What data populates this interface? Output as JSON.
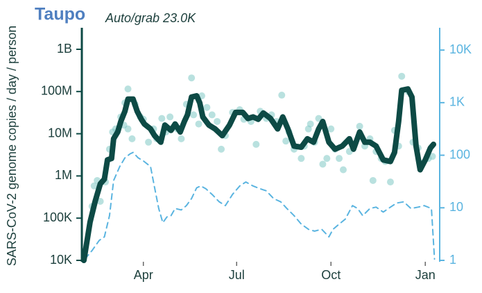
{
  "chart_data": {
    "type": "line",
    "title": "Taupo",
    "subtitle": "Auto/grab 23.0K",
    "ylabel": "SARS-CoV-2 genome copies  / day / person",
    "log_scale": true,
    "xlim": [
      -60,
      285
    ],
    "xticks": [
      {
        "value": 0,
        "label": "Apr"
      },
      {
        "value": 91,
        "label": "Jul"
      },
      {
        "value": 183,
        "label": "Oct"
      },
      {
        "value": 275,
        "label": "Jan"
      }
    ],
    "ylim": [
      10000,
      3000000000
    ],
    "yticks": [
      {
        "value": 10000,
        "label": "10K"
      },
      {
        "value": 100000,
        "label": "100K"
      },
      {
        "value": 1000000,
        "label": "1M"
      },
      {
        "value": 10000000,
        "label": "10M"
      },
      {
        "value": 100000000,
        "label": "100M"
      },
      {
        "value": 1000000000,
        "label": "1B"
      }
    ],
    "y2lim": [
      1,
      25000
    ],
    "y2ticks": [
      1,
      10,
      100,
      {
        "value": 1000,
        "label": "1K"
      },
      {
        "value": 10000,
        "label": "10K"
      }
    ],
    "series": [
      {
        "style": "scatter",
        "color": "#7fc9c4",
        "x": [
          -50,
          -48,
          -45,
          -42,
          -37,
          -33,
          -30,
          -27,
          -22,
          -18,
          -15,
          -19,
          -15,
          -11,
          -8,
          -3,
          0,
          5,
          10,
          13,
          18,
          22,
          26,
          33,
          37,
          42,
          47,
          49,
          54,
          57,
          62,
          67,
          72,
          76,
          80,
          87,
          94,
          98,
          105,
          110,
          114,
          120,
          125,
          130,
          135,
          139,
          142,
          147,
          154,
          157,
          161,
          163,
          167,
          171,
          175,
          179,
          183,
          187,
          191,
          195,
          201,
          205,
          211,
          216,
          221,
          224,
          227,
          232,
          236,
          241,
          245,
          249,
          252,
          258,
          263,
          268,
          272,
          278,
          282
        ],
        "values": [
          190000,
          580000,
          780000,
          250000,
          720000,
          4300000,
          11000000,
          13000000,
          25000000,
          54000000,
          115000000,
          16000000,
          13000000,
          7600000,
          50000000,
          25000000,
          22000000,
          6300000,
          13000000,
          7600000,
          23000000,
          11000000,
          25000000,
          13000000,
          7600000,
          50000000,
          210000000,
          28000000,
          17000000,
          79000000,
          42000000,
          28000000,
          19500000,
          4300000,
          9000000,
          32000000,
          37000000,
          22000000,
          19500000,
          5600000,
          34000000,
          23000000,
          28000000,
          19500000,
          82000000,
          6700000,
          11000000,
          4300000,
          2600000,
          5100000,
          13000000,
          17000000,
          6300000,
          23000000,
          1900000,
          2600000,
          13000000,
          4300000,
          2600000,
          1400000,
          3800000,
          5100000,
          15000000,
          5100000,
          7600000,
          780000,
          3800000,
          2600000,
          2200000,
          720000,
          12000000,
          5100000,
          230000000,
          100000000,
          6300000,
          4600000,
          2000000,
          2600000,
          2900000
        ]
      },
      {
        "style": "line",
        "color": "#0d4a45",
        "x": [
          -58,
          -52,
          -47,
          -42,
          -38,
          -35,
          -31,
          -29,
          -25,
          -22,
          -18,
          -15,
          -10,
          -6,
          -2,
          1,
          7,
          11,
          17,
          21,
          27,
          31,
          36,
          40,
          43,
          47,
          52,
          55,
          58,
          64,
          70,
          77,
          84,
          90,
          97,
          102,
          107,
          112,
          117,
          124,
          131,
          136,
          141,
          147,
          154,
          160,
          166,
          171,
          175,
          181,
          187,
          194,
          201,
          205,
          211,
          216,
          221,
          227,
          234,
          241,
          245,
          249,
          252,
          258,
          262,
          266,
          270,
          275,
          280,
          283
        ],
        "values": [
          10000,
          80000,
          250000,
          650000,
          840000,
          2400000,
          2600000,
          7600000,
          11000000,
          19500000,
          34000000,
          66000000,
          66000000,
          34000000,
          22000000,
          17000000,
          13000000,
          9000000,
          6300000,
          16000000,
          12000000,
          17000000,
          11000000,
          19500000,
          28000000,
          74000000,
          79000000,
          54000000,
          25000000,
          16000000,
          13000000,
          9000000,
          16000000,
          32000000,
          32000000,
          23000000,
          25000000,
          22000000,
          31000000,
          23000000,
          13000000,
          25000000,
          13000000,
          5100000,
          4800000,
          7600000,
          6300000,
          13000000,
          19500000,
          6300000,
          4300000,
          5100000,
          7600000,
          4300000,
          11000000,
          6300000,
          6300000,
          5100000,
          2400000,
          2200000,
          3600000,
          19500000,
          107000000,
          115000000,
          74000000,
          5100000,
          1400000,
          2400000,
          4600000,
          5600000
        ]
      },
      {
        "style": "dashed",
        "axis": "y2",
        "color": "#5ab4e0",
        "x": [
          -57,
          -50,
          -43,
          -38,
          -33,
          -29,
          -23,
          -18,
          -13,
          -10,
          -5,
          0,
          7,
          11,
          15,
          19,
          23,
          27,
          31,
          37,
          42,
          47,
          52,
          56,
          61,
          67,
          74,
          80,
          87,
          94,
          100,
          107,
          114,
          120,
          127,
          134,
          140,
          147,
          154,
          161,
          167,
          174,
          181,
          185,
          191,
          197,
          204,
          209,
          214,
          221,
          227,
          234,
          241,
          247,
          254,
          261,
          268,
          274,
          281,
          284
        ],
        "values": [
          1.06,
          1.54,
          2.4,
          2.8,
          7.1,
          33,
          61,
          89,
          106,
          113,
          89,
          78,
          61,
          24,
          9.7,
          5.2,
          6.7,
          7.1,
          9.7,
          9.1,
          11,
          15,
          24,
          26,
          23,
          18,
          13,
          11,
          18,
          26,
          31,
          26,
          23,
          21,
          15,
          13,
          9.7,
          7.1,
          4.9,
          3.9,
          3.6,
          3.9,
          2.8,
          3.9,
          4.9,
          6.1,
          11,
          9.7,
          7.1,
          9.7,
          10.3,
          8.3,
          10.3,
          12.3,
          13,
          9.7,
          10.3,
          11,
          9.7,
          1.06
        ]
      }
    ]
  }
}
